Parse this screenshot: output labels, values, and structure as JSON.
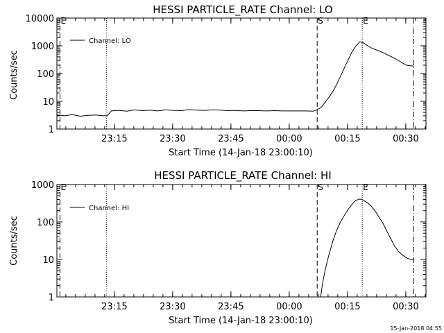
{
  "footer": {
    "timestamp": "15-Jan-2018 04:55"
  },
  "chart_data": [
    {
      "type": "line",
      "title": "HESSI PARTICLE_RATE Channel: LO",
      "xlabel": "Start Time (14-Jan-18 23:00:10)",
      "ylabel": "Counts/sec",
      "y_scale": "log",
      "ylim": [
        1,
        10000
      ],
      "y_ticks": [
        "1",
        "10",
        "100",
        "1000",
        "10000"
      ],
      "x_unit": "minutes since 23:00:10",
      "xlim": [
        0,
        95
      ],
      "x_ticks": [
        {
          "label": "23:15",
          "t": 14.8
        },
        {
          "label": "23:30",
          "t": 29.8
        },
        {
          "label": "23:45",
          "t": 44.8
        },
        {
          "label": "00:00",
          "t": 59.8
        },
        {
          "label": "00:15",
          "t": 74.8
        },
        {
          "label": "00:30",
          "t": 89.8
        }
      ],
      "series": [
        {
          "name": "Channel: LO",
          "color": "#000000",
          "x": [
            0,
            2,
            4,
            6,
            8,
            10,
            12,
            13,
            14,
            16,
            18,
            20,
            22,
            24,
            26,
            28,
            30,
            32,
            34,
            36,
            38,
            40,
            42,
            44,
            46,
            48,
            50,
            52,
            54,
            56,
            58,
            60,
            62,
            64,
            66,
            67,
            68,
            69,
            70,
            71,
            72,
            73,
            74,
            75,
            76,
            77,
            78,
            79,
            80,
            81,
            82,
            83,
            84,
            85,
            86,
            87,
            88,
            89,
            90,
            91,
            92
          ],
          "y": [
            3.2,
            3.0,
            3.3,
            2.9,
            3.1,
            3.2,
            3.0,
            3.0,
            4.5,
            4.7,
            4.4,
            4.9,
            4.6,
            4.8,
            4.5,
            4.9,
            4.7,
            4.6,
            5.0,
            4.8,
            4.7,
            4.9,
            4.8,
            4.6,
            4.7,
            4.5,
            4.6,
            4.6,
            4.5,
            4.6,
            4.5,
            4.5,
            4.5,
            4.5,
            4.4,
            5.0,
            6.0,
            9.0,
            14,
            22,
            40,
            80,
            160,
            320,
            620,
            1000,
            1400,
            1250,
            1000,
            830,
            730,
            650,
            560,
            480,
            410,
            350,
            290,
            240,
            200,
            190,
            185
          ]
        }
      ],
      "vlines": [
        {
          "t": 0.8,
          "style": "dashed",
          "label": "E"
        },
        {
          "t": 12.8,
          "style": "dotted",
          "label": ""
        },
        {
          "t": 67.0,
          "style": "dashed",
          "label": "S"
        },
        {
          "t": 78.6,
          "style": "dotted",
          "label": "E"
        },
        {
          "t": 91.8,
          "style": "dashdot",
          "label": ""
        }
      ],
      "legend": "top-left"
    },
    {
      "type": "line",
      "title": "HESSI PARTICLE_RATE Channel: HI",
      "xlabel": "Start Time (14-Jan-18 23:00:10)",
      "ylabel": "Counts/sec",
      "y_scale": "log",
      "ylim": [
        1,
        1000
      ],
      "y_ticks": [
        "1",
        "10",
        "100",
        "1000"
      ],
      "x_unit": "minutes since 23:00:10",
      "xlim": [
        0,
        95
      ],
      "x_ticks": [
        {
          "label": "23:15",
          "t": 14.8
        },
        {
          "label": "23:30",
          "t": 29.8
        },
        {
          "label": "23:45",
          "t": 44.8
        },
        {
          "label": "00:00",
          "t": 59.8
        },
        {
          "label": "00:15",
          "t": 74.8
        },
        {
          "label": "00:30",
          "t": 89.8
        }
      ],
      "series": [
        {
          "name": "Channel: HI",
          "color": "#000000",
          "x": [
            67.9,
            68.3,
            69,
            70,
            71,
            72,
            73,
            74,
            75,
            76,
            77,
            78,
            79,
            80,
            81,
            82,
            83,
            84,
            85,
            86,
            87,
            88,
            89,
            90,
            91,
            92
          ],
          "y": [
            1.0,
            2.0,
            5.0,
            13,
            30,
            60,
            100,
            150,
            220,
            300,
            380,
            410,
            380,
            320,
            260,
            190,
            130,
            90,
            55,
            35,
            22,
            16,
            13,
            11,
            10,
            10
          ]
        }
      ],
      "vlines": [
        {
          "t": 0.8,
          "style": "dashed",
          "label": "E"
        },
        {
          "t": 12.8,
          "style": "dotted",
          "label": ""
        },
        {
          "t": 67.0,
          "style": "dashed",
          "label": "S"
        },
        {
          "t": 78.6,
          "style": "dotted",
          "label": "E"
        },
        {
          "t": 91.8,
          "style": "dashdot",
          "label": ""
        }
      ],
      "legend": "top-left"
    }
  ]
}
